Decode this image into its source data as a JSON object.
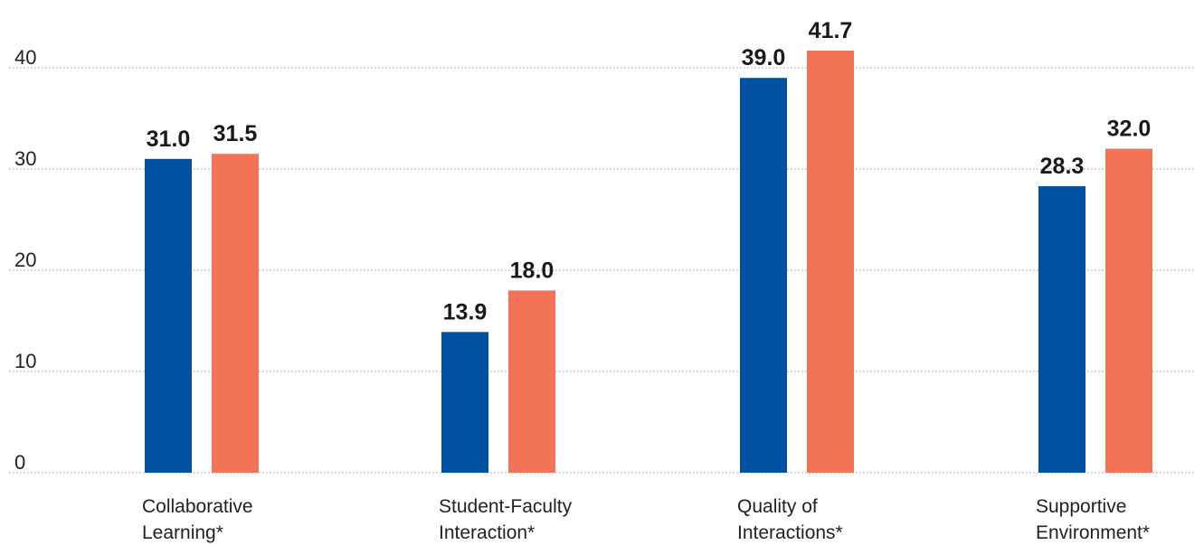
{
  "chart_data": {
    "type": "bar",
    "categories": [
      [
        "Collaborative",
        "Learning*"
      ],
      [
        "Student-Faculty",
        "Interaction*"
      ],
      [
        "Quality of",
        "Interactions*"
      ],
      [
        "Supportive",
        "Environment*"
      ]
    ],
    "series": [
      {
        "values": [
          31.0,
          13.9,
          39.0,
          28.3
        ],
        "color": "#0051a2"
      },
      {
        "values": [
          31.5,
          18.0,
          41.7,
          32.0
        ],
        "color": "#f27357"
      }
    ],
    "value_labels": [
      [
        "31.0",
        "13.9",
        "39.0",
        "28.3"
      ],
      [
        "31.5",
        "18.0",
        "41.7",
        "32.0"
      ]
    ],
    "yticks": [
      0,
      10,
      20,
      30,
      40
    ],
    "ylim": [
      0,
      45
    ],
    "grid": true,
    "legend": "none"
  }
}
